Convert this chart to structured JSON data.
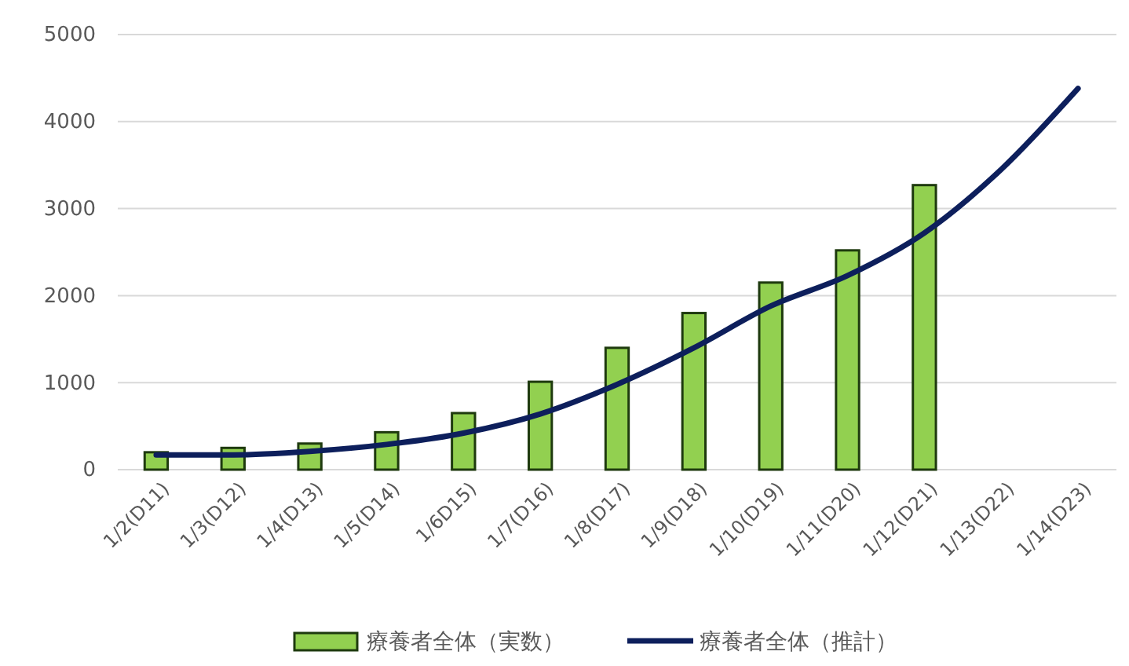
{
  "chart_data": {
    "type": "bar",
    "categories": [
      "1/2(D11)",
      "1/3(D12)",
      "1/4(D13)",
      "1/5(D14)",
      "1/6D15)",
      "1/7(D16)",
      "1/8(D17)",
      "1/9(D18)",
      "1/10(D19)",
      "1/11(D20)",
      "1/12(D21)",
      "1/13(D22)",
      "1/14(D23)"
    ],
    "series": [
      {
        "name": "療養者全体（実数）",
        "color": "#92d050",
        "values": [
          200,
          250,
          300,
          430,
          650,
          1010,
          1400,
          1800,
          2150,
          2520,
          3270,
          null,
          null
        ]
      },
      {
        "name": "療養者全体（推計）",
        "type": "line",
        "color": "#0d1f5c",
        "values": [
          170,
          170,
          210,
          290,
          420,
          640,
          980,
          1400,
          1880,
          2230,
          2720,
          3450,
          4380
        ]
      }
    ],
    "ylim": [
      0,
      5000
    ],
    "yticks": [
      0,
      1000,
      2000,
      3000,
      4000,
      5000
    ],
    "grid": "y",
    "legend": "bottom",
    "marker": "none",
    "line_style": "solid"
  }
}
